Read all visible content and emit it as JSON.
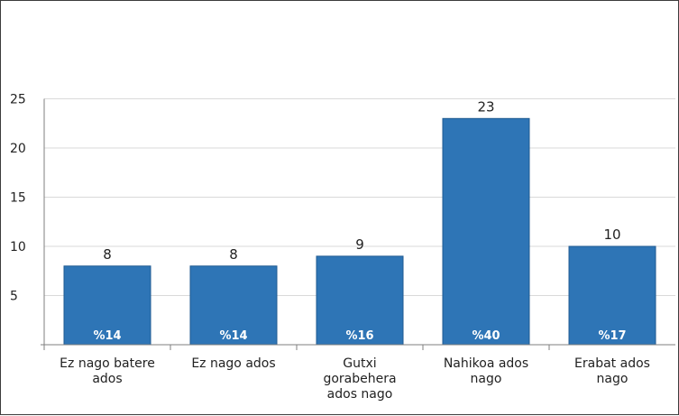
{
  "chart_data": {
    "type": "bar",
    "title": "",
    "xlabel": "",
    "ylabel": "",
    "categories": [
      [
        "Ez nago batere",
        "ados"
      ],
      [
        "Ez nago ados"
      ],
      [
        "Gutxi",
        "gorabehera",
        "ados nago"
      ],
      [
        "Nahikoa ados",
        "nago"
      ],
      [
        "Erabat ados",
        "nago"
      ]
    ],
    "values": [
      8,
      8,
      9,
      23,
      10
    ],
    "percent_labels": [
      "%14",
      "%14",
      "%16",
      "%40",
      "%17"
    ],
    "ylim": [
      0,
      25
    ],
    "yticks": [
      5,
      10,
      15,
      20,
      25
    ],
    "grid": true,
    "legend": "none",
    "colors": {
      "bar": "#2e75b6",
      "bar_edge": "#1f5a91",
      "grid": "#d9d9d9",
      "axis": "#7f7f7f"
    }
  }
}
